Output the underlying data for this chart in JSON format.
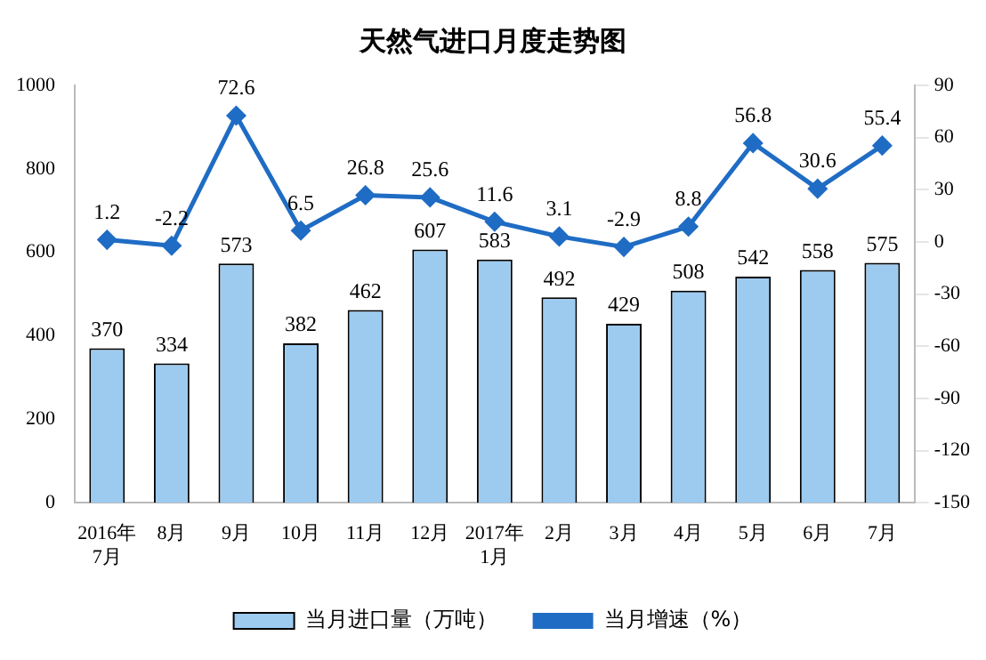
{
  "chart_data": {
    "type": "bar",
    "title": "天然气进口月度走势图",
    "categories": [
      "2016年\n7月",
      "8月",
      "9月",
      "10月",
      "11月",
      "12月",
      "2017年\n1月",
      "2月",
      "3月",
      "4月",
      "5月",
      "6月",
      "7月"
    ],
    "series": [
      {
        "name": "当月进口量（万吨）",
        "color": "#9dcbf0",
        "values": [
          370,
          334,
          573,
          382,
          462,
          607,
          583,
          492,
          429,
          508,
          542,
          558,
          575
        ]
      },
      {
        "name": "当月增速（%）",
        "type": "line",
        "axis": "y2",
        "color": "#1f6cc4",
        "marker": "diamond",
        "values": [
          1.2,
          -2.2,
          72.6,
          6.5,
          26.8,
          25.6,
          11.6,
          3.1,
          -2.9,
          8.8,
          56.8,
          30.6,
          55.4
        ]
      }
    ],
    "ylim": [
      0,
      1000
    ],
    "yticks": [
      0,
      200,
      400,
      600,
      800,
      1000
    ],
    "y2lim": [
      -150,
      90
    ],
    "y2ticks": [
      -150,
      -120,
      -90,
      -60,
      -30,
      0,
      30,
      60,
      90
    ],
    "grid": false,
    "legend": "bottom",
    "data_labels": true
  }
}
